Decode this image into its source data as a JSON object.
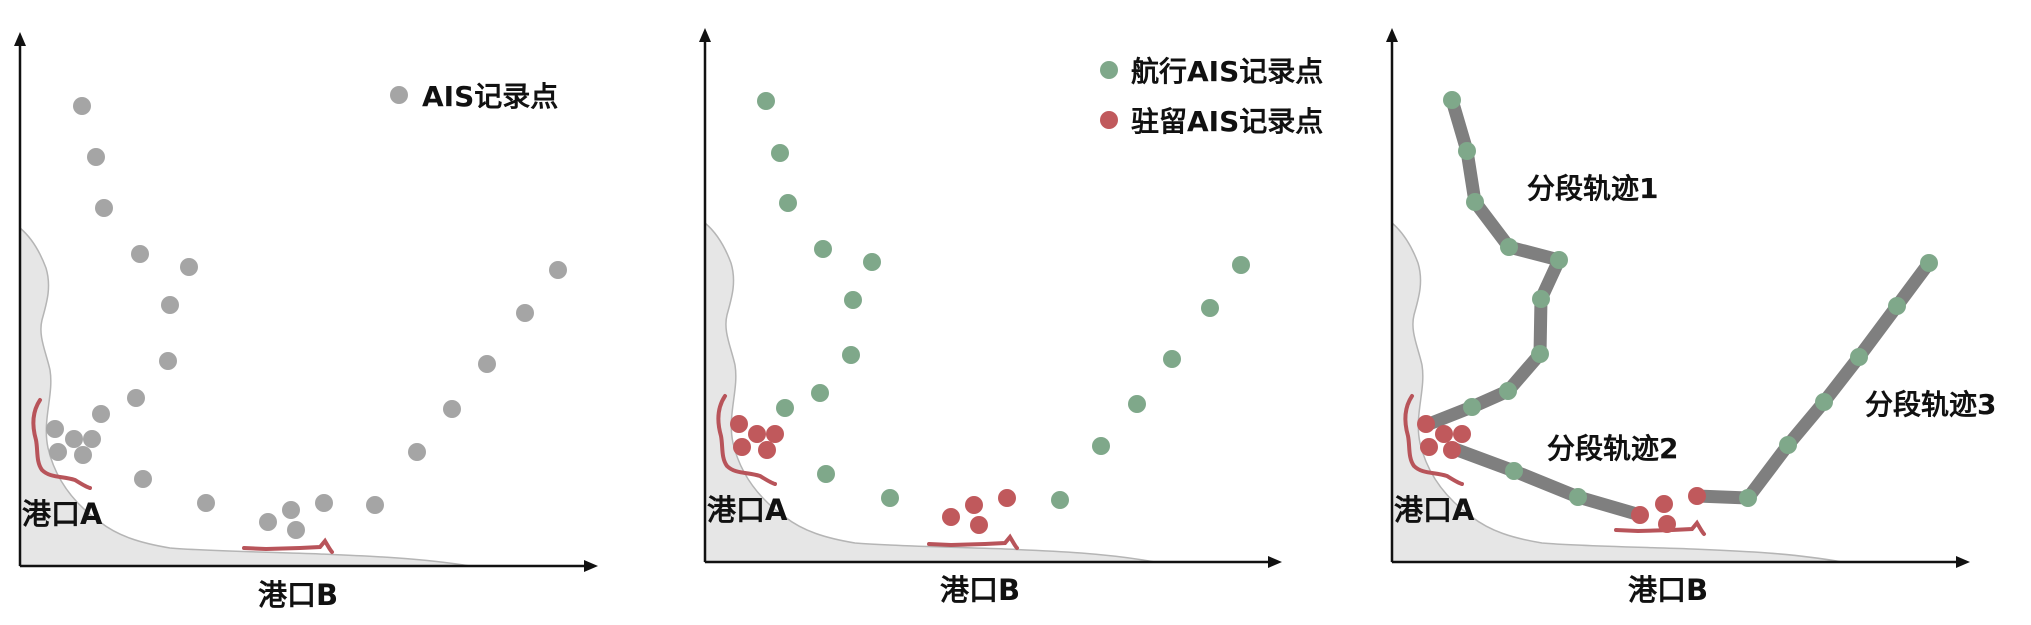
{
  "colors": {
    "gray_point": "#a5a5a5",
    "sailing_point": "#7fa88a",
    "stay_point": "#c0595c",
    "track": "#7f7f7f",
    "coast_fill": "#e6e6e6",
    "coast_stroke": "#b5b5b5",
    "port_line": "#b8545a",
    "axis": "#111111"
  },
  "panel1": {
    "legend_label": "AIS记录点",
    "port_a_label": "港口A",
    "port_b_label": "港口B"
  },
  "panel2": {
    "legend_sailing_label": "航行AIS记录点",
    "legend_stay_label": "驻留AIS记录点",
    "port_a_label": "港口A",
    "port_b_label": "港口B"
  },
  "panel3": {
    "segment1_label": "分段轨迹1",
    "segment2_label": "分段轨迹2",
    "segment3_label": "分段轨迹3",
    "port_a_label": "港口A",
    "port_b_label": "港口B"
  }
}
